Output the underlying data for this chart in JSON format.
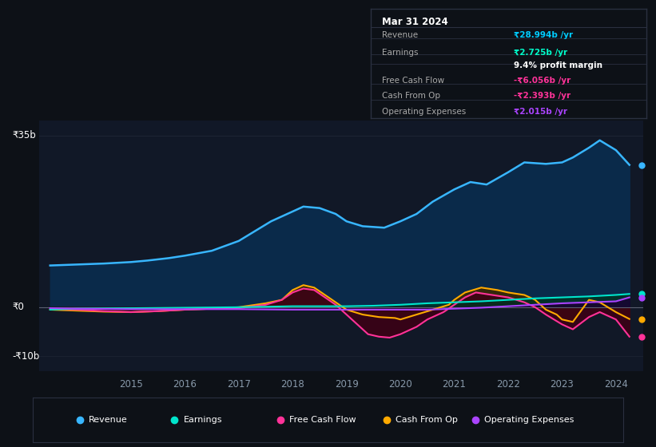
{
  "bg_color": "#0d1117",
  "plot_bg_color": "#111827",
  "grid_color": "#1e2535",
  "zero_line_color": "#5a6070",
  "ylabel_35b": "₹35b",
  "ylabel_0": "₹0",
  "ylabel_neg10b": "-₹10b",
  "legend_items": [
    {
      "label": "Revenue",
      "color": "#38b6ff"
    },
    {
      "label": "Earnings",
      "color": "#00e5cc"
    },
    {
      "label": "Free Cash Flow",
      "color": "#ff3399"
    },
    {
      "label": "Cash From Op",
      "color": "#ffaa00"
    },
    {
      "label": "Operating Expenses",
      "color": "#aa44ff"
    }
  ],
  "info_box": {
    "title": "Mar 31 2024",
    "rows": [
      {
        "label": "Revenue",
        "value": "₹28.994b /yr",
        "value_color": "#00ccff"
      },
      {
        "label": "Earnings",
        "value": "₹2.725b /yr",
        "value_color": "#00ffcc"
      },
      {
        "label": "",
        "value": "9.4% profit margin",
        "value_color": "#ffffff"
      },
      {
        "label": "Free Cash Flow",
        "value": "-₹6.056b /yr",
        "value_color": "#ff3399"
      },
      {
        "label": "Cash From Op",
        "value": "-₹2.393b /yr",
        "value_color": "#ff3399"
      },
      {
        "label": "Operating Expenses",
        "value": "₹2.015b /yr",
        "value_color": "#aa44ff"
      }
    ]
  },
  "revenue_x": [
    2013.5,
    2014.0,
    2014.5,
    2015.0,
    2015.3,
    2015.7,
    2016.0,
    2016.5,
    2017.0,
    2017.3,
    2017.6,
    2018.0,
    2018.2,
    2018.5,
    2018.8,
    2019.0,
    2019.3,
    2019.7,
    2020.0,
    2020.3,
    2020.6,
    2021.0,
    2021.3,
    2021.6,
    2022.0,
    2022.3,
    2022.7,
    2023.0,
    2023.2,
    2023.5,
    2023.7,
    2024.0,
    2024.25
  ],
  "revenue_y": [
    8.5,
    8.7,
    8.9,
    9.2,
    9.5,
    10.0,
    10.5,
    11.5,
    13.5,
    15.5,
    17.5,
    19.5,
    20.5,
    20.2,
    19.0,
    17.5,
    16.5,
    16.2,
    17.5,
    19.0,
    21.5,
    24.0,
    25.5,
    25.0,
    27.5,
    29.5,
    29.2,
    29.5,
    30.5,
    32.5,
    34.0,
    32.0,
    29.0
  ],
  "earnings_x": [
    2013.5,
    2014.0,
    2015.0,
    2016.0,
    2017.0,
    2018.0,
    2019.0,
    2019.5,
    2020.0,
    2020.5,
    2021.0,
    2021.5,
    2022.0,
    2022.5,
    2023.0,
    2023.5,
    2024.0,
    2024.25
  ],
  "earnings_y": [
    -0.5,
    -0.3,
    -0.2,
    -0.1,
    0.0,
    0.2,
    0.2,
    0.3,
    0.5,
    0.8,
    1.0,
    1.2,
    1.5,
    1.8,
    2.0,
    2.2,
    2.5,
    2.7
  ],
  "fcf_x": [
    2013.5,
    2014.0,
    2014.5,
    2015.0,
    2015.5,
    2016.0,
    2016.5,
    2017.0,
    2017.5,
    2017.8,
    2018.0,
    2018.2,
    2018.4,
    2018.6,
    2018.8,
    2019.0,
    2019.2,
    2019.4,
    2019.6,
    2019.8,
    2020.0,
    2020.3,
    2020.5,
    2020.8,
    2021.0,
    2021.2,
    2021.4,
    2021.7,
    2022.0,
    2022.3,
    2022.5,
    2022.7,
    2023.0,
    2023.2,
    2023.5,
    2023.7,
    2024.0,
    2024.25
  ],
  "fcf_y": [
    -0.3,
    -0.5,
    -0.8,
    -1.0,
    -0.8,
    -0.5,
    -0.3,
    -0.2,
    0.5,
    1.5,
    3.0,
    3.8,
    3.5,
    2.0,
    0.5,
    -1.5,
    -3.5,
    -5.5,
    -6.0,
    -6.2,
    -5.5,
    -4.0,
    -2.5,
    -1.0,
    0.5,
    2.0,
    3.0,
    2.5,
    2.0,
    1.0,
    0.0,
    -1.5,
    -3.5,
    -4.5,
    -2.0,
    -1.0,
    -2.5,
    -6.0
  ],
  "cop_x": [
    2013.5,
    2014.0,
    2014.5,
    2015.0,
    2015.5,
    2016.0,
    2016.5,
    2017.0,
    2017.5,
    2017.8,
    2018.0,
    2018.2,
    2018.4,
    2018.6,
    2018.8,
    2019.0,
    2019.3,
    2019.6,
    2019.9,
    2020.0,
    2020.3,
    2020.6,
    2020.9,
    2021.0,
    2021.2,
    2021.5,
    2021.8,
    2022.0,
    2022.3,
    2022.5,
    2022.7,
    2022.9,
    2023.0,
    2023.2,
    2023.5,
    2023.7,
    2024.0,
    2024.25
  ],
  "cop_y": [
    -0.5,
    -0.7,
    -0.9,
    -1.0,
    -0.8,
    -0.5,
    -0.3,
    0.0,
    0.8,
    1.5,
    3.5,
    4.5,
    4.0,
    2.5,
    1.0,
    -0.5,
    -1.5,
    -2.0,
    -2.2,
    -2.5,
    -1.5,
    -0.5,
    0.5,
    1.5,
    3.0,
    4.0,
    3.5,
    3.0,
    2.5,
    1.5,
    -0.5,
    -1.5,
    -2.5,
    -3.0,
    1.5,
    1.0,
    -1.0,
    -2.4
  ],
  "opex_x": [
    2013.5,
    2014.0,
    2015.0,
    2016.0,
    2017.0,
    2018.0,
    2019.0,
    2019.5,
    2020.0,
    2020.5,
    2021.0,
    2021.5,
    2022.0,
    2022.5,
    2023.0,
    2023.5,
    2024.0,
    2024.25
  ],
  "opex_y": [
    -0.2,
    -0.3,
    -0.4,
    -0.4,
    -0.4,
    -0.5,
    -0.5,
    -0.5,
    -0.5,
    -0.5,
    -0.3,
    -0.1,
    0.2,
    0.5,
    0.8,
    1.0,
    1.2,
    2.0
  ],
  "xlim": [
    2013.3,
    2024.5
  ],
  "ylim": [
    -13,
    38
  ],
  "xticks": [
    2015,
    2016,
    2017,
    2018,
    2019,
    2020,
    2021,
    2022,
    2023,
    2024
  ],
  "revenue_color": "#38b6ff",
  "revenue_fill": "#0a2a4a",
  "earnings_color": "#00e5cc",
  "earnings_fill": "#003322",
  "fcf_color": "#ff3399",
  "fcf_fill": "#3d0015",
  "cop_color": "#ffaa00",
  "cop_fill": "#3d2800",
  "opex_color": "#aa44ff",
  "opex_fill": "#1a0033"
}
